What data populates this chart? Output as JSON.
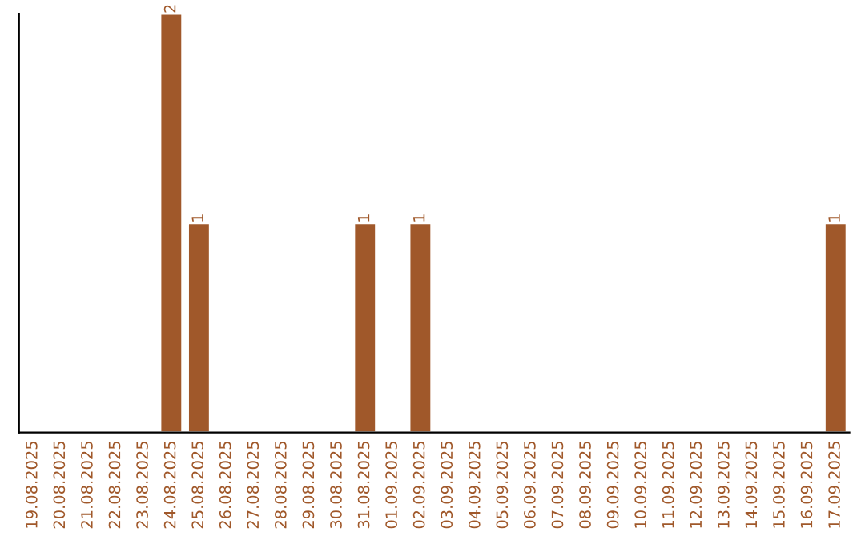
{
  "chart_data": {
    "type": "bar",
    "categories": [
      "19.08.2025",
      "20.08.2025",
      "21.08.2025",
      "22.08.2025",
      "23.08.2025",
      "24.08.2025",
      "25.08.2025",
      "26.08.2025",
      "27.08.2025",
      "28.08.2025",
      "29.08.2025",
      "30.08.2025",
      "31.08.2025",
      "01.09.2025",
      "02.09.2025",
      "03.09.2025",
      "04.09.2025",
      "05.09.2025",
      "06.09.2025",
      "07.09.2025",
      "08.09.2025",
      "09.09.2025",
      "10.09.2025",
      "11.09.2025",
      "12.09.2025",
      "13.09.2025",
      "14.09.2025",
      "15.09.2025",
      "16.09.2025",
      "17.09.2025"
    ],
    "values": [
      null,
      null,
      null,
      null,
      null,
      2,
      1,
      null,
      null,
      null,
      null,
      null,
      1,
      null,
      1,
      null,
      null,
      null,
      null,
      null,
      null,
      null,
      null,
      null,
      null,
      null,
      null,
      null,
      null,
      1
    ],
    "color": "#a0582a",
    "data_labels": true,
    "tick_labels": "x",
    "grid": false,
    "legend": false
  }
}
